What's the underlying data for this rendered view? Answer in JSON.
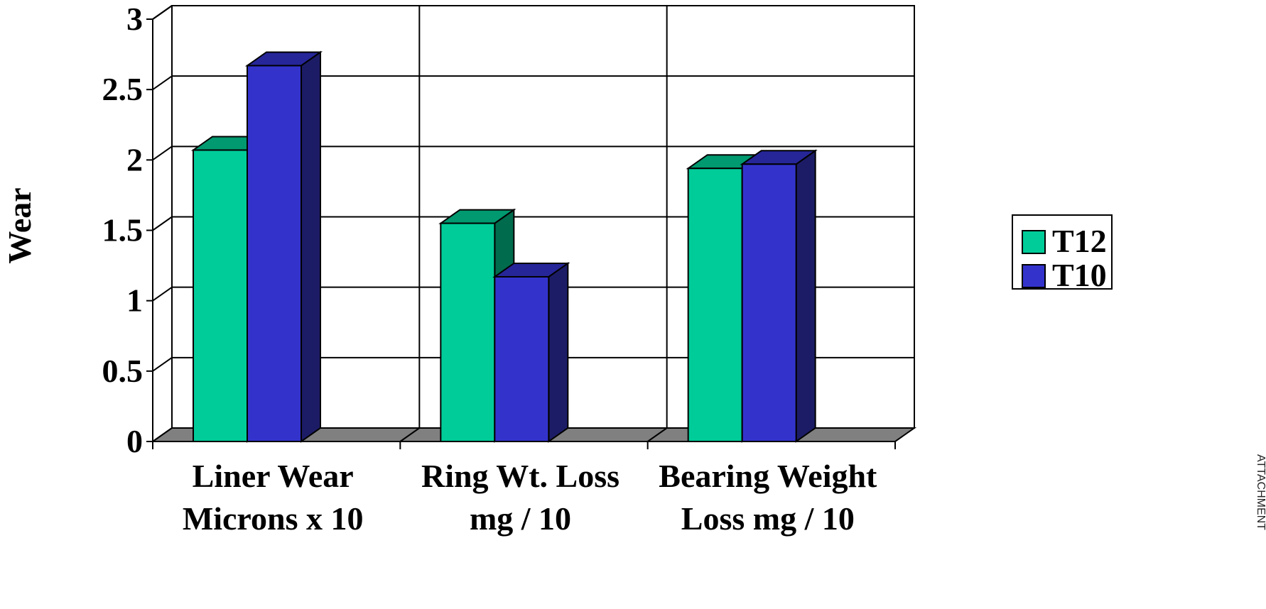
{
  "chart_data": {
    "type": "bar",
    "title": "",
    "xlabel": "",
    "ylabel": "Wear",
    "ylim": [
      0,
      3
    ],
    "yticks": [
      "0",
      "0.5",
      "1",
      "1.5",
      "2",
      "2.5",
      "3"
    ],
    "categories": [
      [
        "Liner Wear",
        "Microns x 10"
      ],
      [
        "Ring Wt. Loss",
        "mg / 10"
      ],
      [
        "Bearing Weight",
        "Loss  mg / 10"
      ]
    ],
    "series": [
      {
        "name": "T12",
        "values": [
          2.07,
          1.55,
          1.94
        ],
        "color": "#00CC99",
        "top_color": "#009970",
        "side_color": "#006b4d"
      },
      {
        "name": "T10",
        "values": [
          2.67,
          1.17,
          1.97
        ],
        "color": "#3333CC",
        "top_color": "#262699",
        "side_color": "#1c1c66"
      }
    ],
    "grid": true,
    "legend_position": "right",
    "style": "3d"
  },
  "margin_text": "ATTACHMENT"
}
